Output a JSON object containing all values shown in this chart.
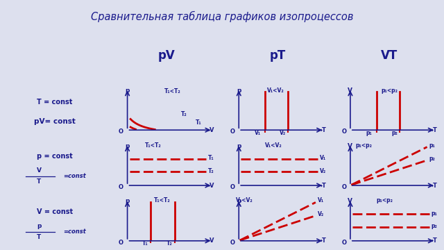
{
  "title": "Сравнительная таблица графиков изопроцессов",
  "col_headers": [
    "pV",
    "pT",
    "VT"
  ],
  "dark_blue": "#1a1a8c",
  "red": "#cc0000",
  "bg_color": "#dde0ee",
  "grid_color": "#8888aa",
  "title_color": "#1a1a8c"
}
